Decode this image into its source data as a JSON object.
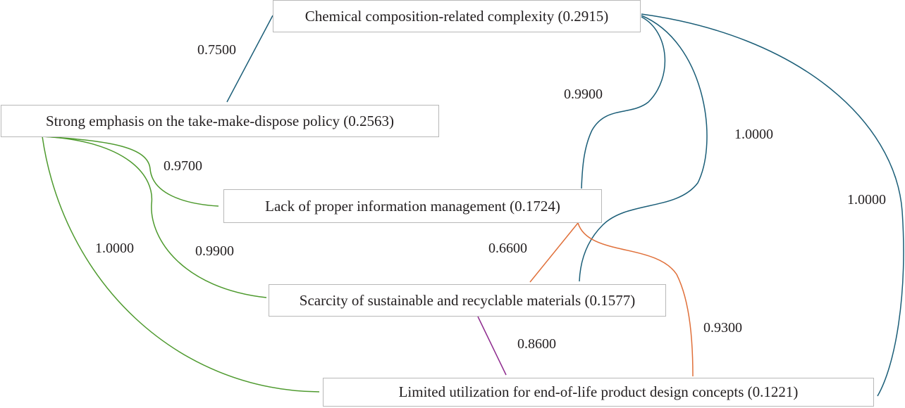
{
  "colors": {
    "teal": "#1b5e78",
    "green": "#4e9a2e",
    "orange": "#e0703a",
    "purple": "#8e2a8e"
  },
  "nodes": {
    "chemical": "Chemical composition-related complexity (0.2915)",
    "takemake": "Strong emphasis on the take-make-dispose policy (0.2563)",
    "info": "Lack of proper information management (0.1724)",
    "scarcity": "Scarcity of sustainable and recyclable materials (0.1577)",
    "limited": "Limited utilization for end-of-life product design concepts (0.1221)"
  },
  "edges": {
    "chemical_takemake": "0.7500",
    "chemical_info": "0.9900",
    "chemical_scarcity": "1.0000",
    "chemical_limited": "1.0000",
    "takemake_info": "0.9700",
    "takemake_scarcity": "0.9900",
    "takemake_limited": "1.0000",
    "info_scarcity": "0.6600",
    "info_limited": "0.9300",
    "scarcity_limited": "0.8600"
  }
}
